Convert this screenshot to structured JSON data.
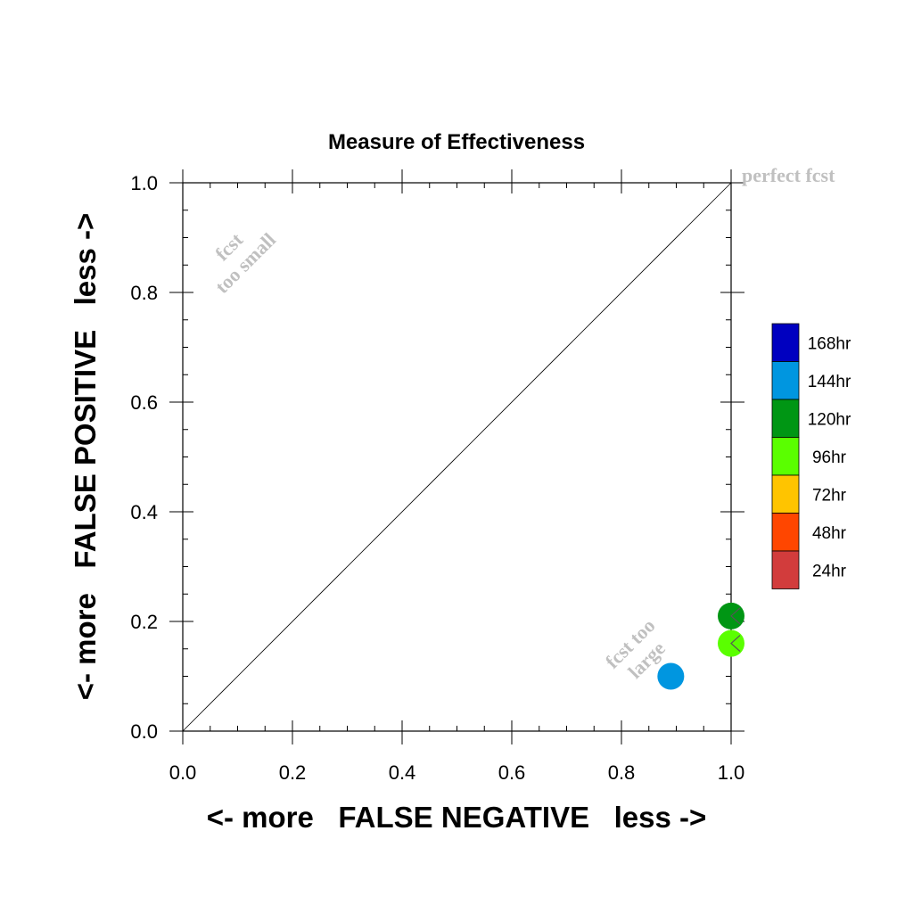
{
  "chart_data": {
    "type": "scatter",
    "title": "Measure of Effectiveness",
    "xlabel": "<- more   FALSE NEGATIVE   less ->",
    "ylabel": "<- more   FALSE POSITIVE   less ->",
    "xlim": [
      0,
      1
    ],
    "ylim": [
      0,
      1
    ],
    "xticks": [
      "0.0",
      "0.2",
      "0.4",
      "0.6",
      "0.8",
      "1.0"
    ],
    "yticks": [
      "0.0",
      "0.2",
      "0.4",
      "0.6",
      "0.8",
      "1.0"
    ],
    "reference_line": {
      "from": [
        0,
        0
      ],
      "to": [
        1,
        1
      ]
    },
    "annotations": {
      "top_right": "perfect fcst",
      "upper_left_line1": "fcst",
      "upper_left_line2": "too small",
      "lower_right_line1": "fcst too",
      "lower_right_line2": "large"
    },
    "legend": {
      "placement": "right",
      "entries": [
        {
          "label": "168hr",
          "color": "#0000c0"
        },
        {
          "label": "144hr",
          "color": "#0096e0"
        },
        {
          "label": "120hr",
          "color": "#009614"
        },
        {
          "label": "96hr",
          "color": "#5aff00"
        },
        {
          "label": "72hr",
          "color": "#ffc400"
        },
        {
          "label": "48hr",
          "color": "#ff4600"
        },
        {
          "label": "24hr",
          "color": "#d23c3c"
        }
      ]
    },
    "points": [
      {
        "series": "144hr",
        "x": 0.89,
        "y": 0.1,
        "color": "#0096e0",
        "clipped": false
      },
      {
        "series": "120hr",
        "x": 1.0,
        "y": 0.21,
        "color": "#009614",
        "clipped": true
      },
      {
        "series": "96hr",
        "x": 1.0,
        "y": 0.16,
        "color": "#5aff00",
        "clipped": true
      }
    ]
  }
}
